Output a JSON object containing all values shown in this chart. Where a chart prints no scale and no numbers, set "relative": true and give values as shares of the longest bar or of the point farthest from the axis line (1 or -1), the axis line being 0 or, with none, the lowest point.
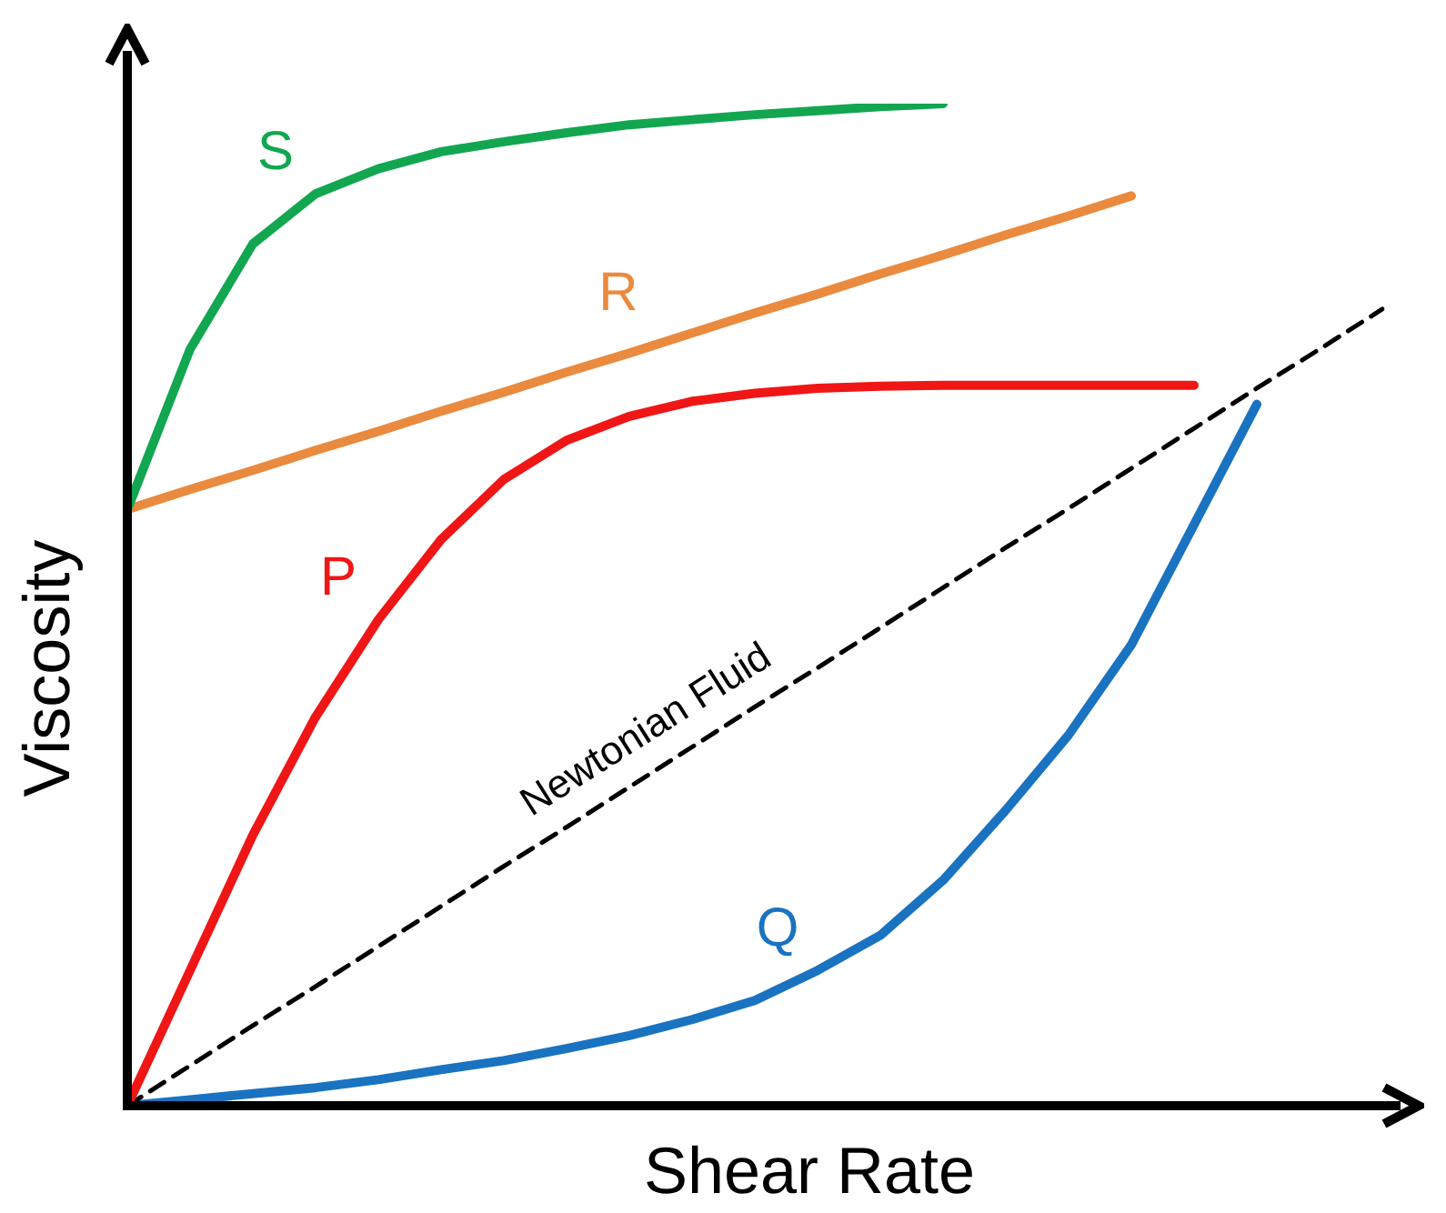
{
  "chart_data": {
    "type": "line",
    "relative": true,
    "xlabel": "Shear Rate",
    "ylabel": "Viscosity",
    "tick_labels": false,
    "marker": "none",
    "categories": [
      null,
      null,
      null,
      null,
      null,
      null,
      null,
      null,
      null,
      null,
      null,
      null,
      null,
      null,
      null,
      null,
      null,
      null,
      null,
      null,
      null
    ],
    "series": [
      {
        "name": "S",
        "color": "#12a650",
        "values": [
          0.595,
          0.755,
          0.86,
          0.91,
          0.935,
          0.952,
          0.962,
          0.971,
          0.979,
          0.984,
          0.989,
          0.993,
          0.997,
          1,
          null,
          null,
          null,
          null,
          null,
          null,
          null
        ]
      },
      {
        "name": "R",
        "color": "#ea8a3e",
        "values": [
          0.595,
          0.615,
          0.634,
          0.654,
          0.673,
          0.693,
          0.712,
          0.732,
          0.751,
          0.771,
          0.791,
          0.81,
          0.83,
          0.849,
          0.869,
          0.888,
          0.908,
          null,
          null,
          null,
          null
        ]
      },
      {
        "name": "P",
        "color": "#f01616",
        "values": [
          0,
          0.135,
          0.27,
          0.388,
          0.485,
          0.565,
          0.625,
          0.664,
          0.688,
          0.703,
          0.711,
          0.716,
          0.718,
          0.719,
          0.719,
          0.719,
          0.719,
          0.719,
          null,
          null,
          null
        ]
      },
      {
        "name": "Newtonian Fluid",
        "color": "#000000",
        "line_style": "dashed",
        "values": [
          0,
          0.04,
          0.08,
          0.119,
          0.159,
          0.199,
          0.239,
          0.278,
          0.318,
          0.358,
          0.398,
          0.437,
          0.477,
          0.517,
          0.557,
          0.596,
          0.636,
          0.676,
          0.716,
          0.755,
          0.795
        ]
      },
      {
        "name": "Q",
        "color": "#1a73c0",
        "values": [
          0,
          0.006,
          0.012,
          0.018,
          0.026,
          0.036,
          0.045,
          0.057,
          0.07,
          0.086,
          0.105,
          0.135,
          0.17,
          0.225,
          0.295,
          0.37,
          0.46,
          0.58,
          0.7,
          null,
          null
        ]
      }
    ]
  }
}
